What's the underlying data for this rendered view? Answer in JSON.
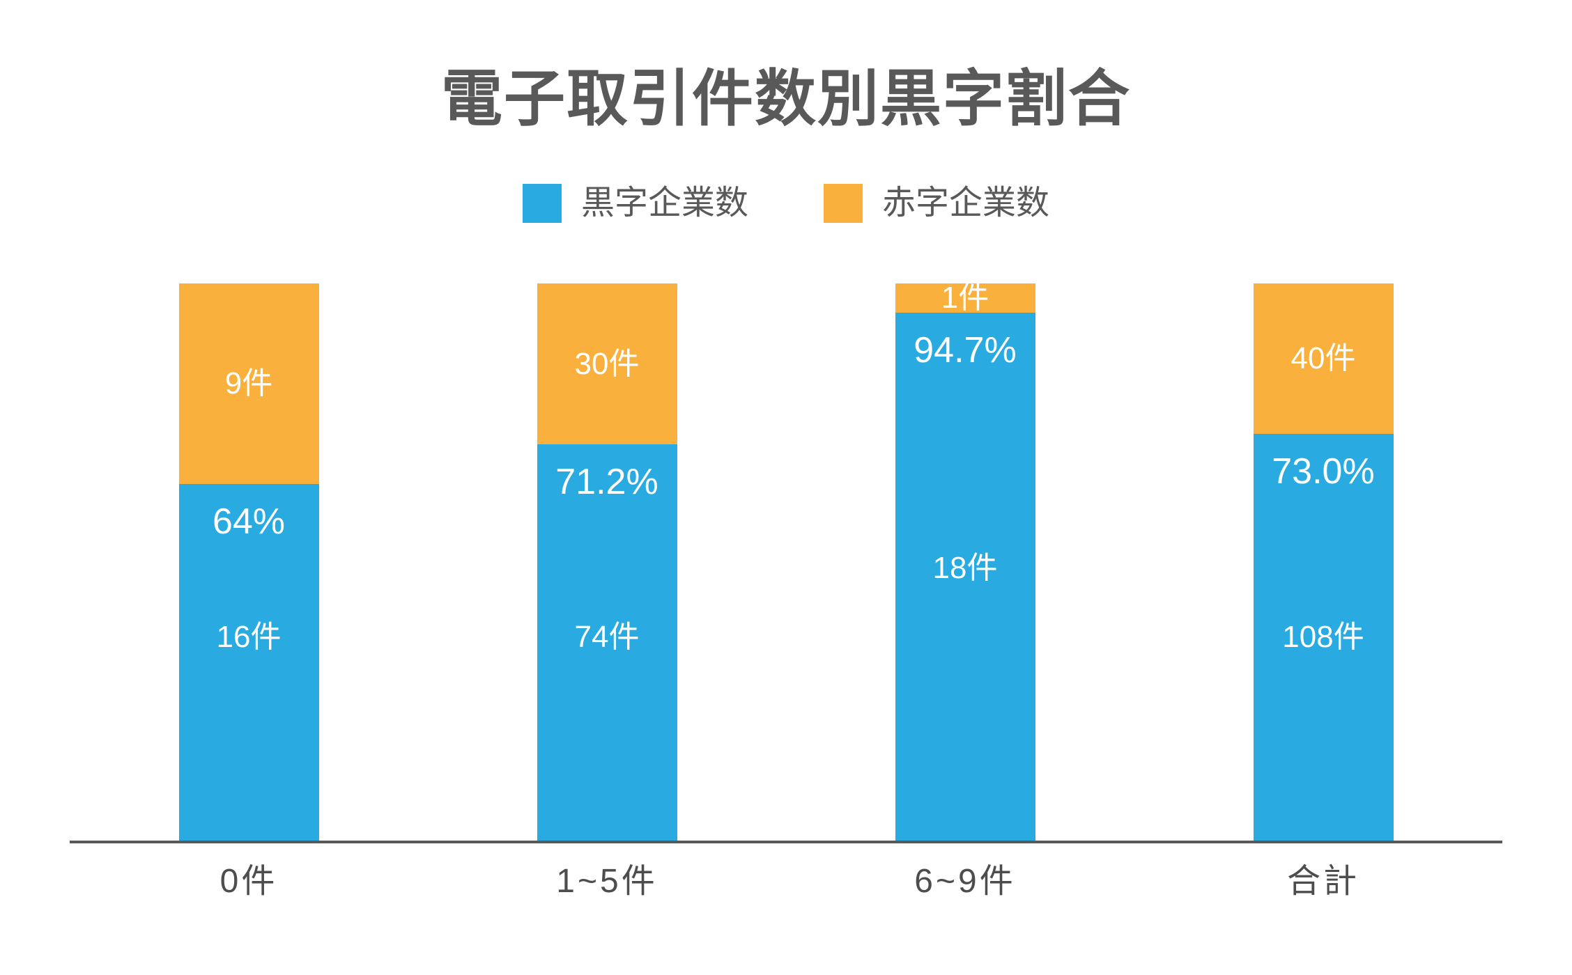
{
  "page": {
    "background_color": "#FFFFFF"
  },
  "chart_data": {
    "type": "bar",
    "variant": "stacked-column-100pct",
    "title": "電子取引件数別黒字割合",
    "categories": [
      "0件",
      "1~5件",
      "6~9件",
      "合計"
    ],
    "series": [
      {
        "name": "黒字企業数",
        "color": "#29ABE2",
        "values": [
          16,
          74,
          18,
          108
        ],
        "value_labels": [
          "16件",
          "74件",
          "18件",
          "108件"
        ],
        "pct_of_total": [
          64.0,
          71.2,
          94.7,
          73.0
        ],
        "pct_labels": [
          "64%",
          "71.2%",
          "94.7%",
          "73.0%"
        ]
      },
      {
        "name": "赤字企業数",
        "color": "#F9B03C",
        "values": [
          9,
          30,
          1,
          40
        ],
        "value_labels": [
          "9件",
          "30件",
          "1件",
          "40件"
        ]
      }
    ],
    "layout": {
      "legend_position": "top-center",
      "grid": false,
      "y_axis_visible": false,
      "x_axis_line_color": "#58595B",
      "title_color": "#595959",
      "axis_label_color": "#4D4D4D",
      "bar_label_color": "#FFFFFF",
      "blue_count_label_y_pct": [
        63.4,
        63.4,
        51.1,
        63.4
      ]
    }
  }
}
